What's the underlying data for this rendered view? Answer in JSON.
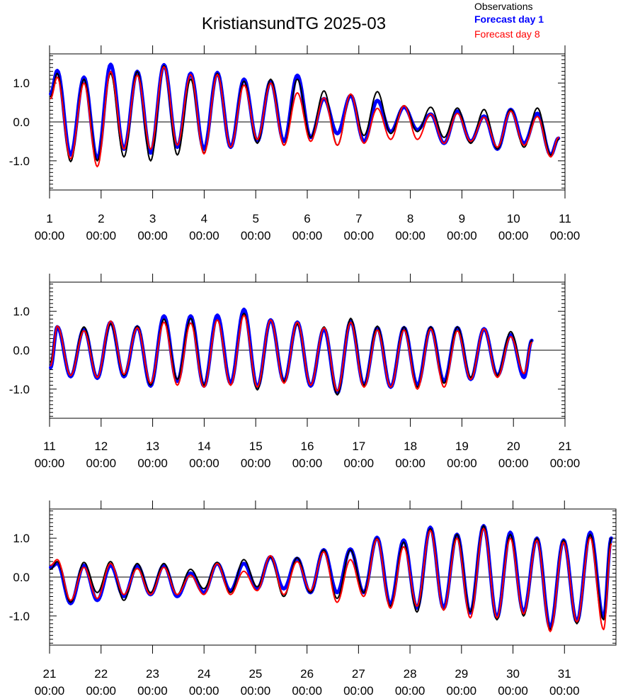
{
  "title": "KristiansundTG 2025-03",
  "legend": [
    {
      "label": "Observations",
      "color": "#000000",
      "bold": false
    },
    {
      "label": "Forecast day 1",
      "color": "#0000ff",
      "bold": true
    },
    {
      "label": "Forecast day 8",
      "color": "#ff0000",
      "bold": false
    }
  ],
  "chart_data": [
    {
      "type": "line",
      "x_range_days": [
        1,
        11
      ],
      "ylim": [
        -1.75,
        1.75
      ],
      "yticks": [
        -1.0,
        0.0,
        1.0
      ],
      "ytick_labels": [
        "-1.0",
        "0.0",
        "1.0"
      ],
      "xtick_labels": [
        [
          "1",
          "00:00"
        ],
        [
          "2",
          "00:00"
        ],
        [
          "3",
          "00:00"
        ],
        [
          "4",
          "00:00"
        ],
        [
          "5",
          "00:00"
        ],
        [
          "6",
          "00:00"
        ],
        [
          "7",
          "00:00"
        ],
        [
          "8",
          "00:00"
        ],
        [
          "9",
          "00:00"
        ],
        [
          "10",
          "00:00"
        ],
        [
          "11",
          "00:00"
        ]
      ],
      "series": [
        {
          "name": "Observations",
          "color": "#000000",
          "start_value": 0.65,
          "highs": [
            1.25,
            1.1,
            1.25,
            1.3,
            1.45,
            1.1,
            1.25,
            1.05,
            1.1,
            1.1,
            0.8,
            0.7,
            0.78,
            0.42,
            0.38,
            0.36,
            0.32,
            0.32,
            0.36
          ],
          "lows": [
            -1.02,
            -1.0,
            -0.9,
            -1.0,
            -0.85,
            -0.8,
            -0.65,
            -0.55,
            -0.6,
            -0.4,
            -0.6,
            -0.35,
            -0.3,
            -0.25,
            -0.4,
            -0.55,
            -0.7,
            -0.65,
            -0.85
          ],
          "end_value": -0.45
        },
        {
          "name": "Forecast day 1",
          "color": "#0000ff",
          "start_value": 0.72,
          "highs": [
            1.32,
            1.15,
            1.48,
            1.3,
            1.47,
            1.25,
            1.27,
            1.1,
            1.05,
            1.2,
            0.6,
            0.68,
            0.55,
            0.38,
            0.2,
            0.28,
            0.15,
            0.32,
            0.22
          ],
          "lows": [
            -0.85,
            -0.95,
            -0.7,
            -0.8,
            -0.65,
            -0.7,
            -0.65,
            -0.5,
            -0.5,
            -0.4,
            -0.3,
            -0.5,
            -0.25,
            -0.2,
            -0.55,
            -0.5,
            -0.7,
            -0.55,
            -0.85
          ],
          "end_value": -0.42
        },
        {
          "name": "Forecast day 8",
          "color": "#ff0000",
          "start_value": 0.6,
          "highs": [
            1.15,
            1.0,
            1.3,
            1.2,
            1.42,
            1.22,
            1.22,
            0.95,
            1.0,
            0.75,
            0.62,
            0.72,
            0.35,
            0.42,
            0.2,
            0.22,
            0.12,
            0.28,
            0.14
          ],
          "lows": [
            -0.95,
            -1.15,
            -0.7,
            -0.7,
            -0.6,
            -0.82,
            -0.65,
            -0.45,
            -0.6,
            -0.5,
            -0.6,
            -0.55,
            -0.45,
            -0.45,
            -0.55,
            -0.5,
            -0.65,
            -0.6,
            -0.9
          ],
          "end_value": -0.4
        }
      ]
    },
    {
      "type": "line",
      "x_range_days": [
        11,
        21
      ],
      "ylim": [
        -1.75,
        1.75
      ],
      "yticks": [
        -1.0,
        0.0,
        1.0
      ],
      "ytick_labels": [
        "-1.0",
        "0.0",
        "1.0"
      ],
      "xtick_labels": [
        [
          "11",
          "00:00"
        ],
        [
          "12",
          "00:00"
        ],
        [
          "13",
          "00:00"
        ],
        [
          "14",
          "00:00"
        ],
        [
          "15",
          "00:00"
        ],
        [
          "16",
          "00:00"
        ],
        [
          "17",
          "00:00"
        ],
        [
          "18",
          "00:00"
        ],
        [
          "19",
          "00:00"
        ],
        [
          "20",
          "00:00"
        ],
        [
          "21",
          "00:00"
        ]
      ],
      "series": [
        {
          "name": "Observations",
          "color": "#000000",
          "start_value": -0.3,
          "highs": [
            0.62,
            0.6,
            0.68,
            0.62,
            0.8,
            0.82,
            0.78,
            0.95,
            0.78,
            0.68,
            0.6,
            0.82,
            0.62,
            0.6,
            0.6,
            0.6,
            0.55,
            0.48
          ],
          "lows": [
            -0.65,
            -0.7,
            -0.65,
            -0.9,
            -0.75,
            -0.9,
            -0.9,
            -1.02,
            -0.8,
            -0.9,
            -1.15,
            -0.9,
            -0.95,
            -0.95,
            -0.85,
            -0.7,
            -0.65,
            -0.6
          ],
          "end_value": 0.25
        },
        {
          "name": "Forecast day 1",
          "color": "#0000ff",
          "start_value": -0.45,
          "highs": [
            0.6,
            0.55,
            0.72,
            0.6,
            0.88,
            0.88,
            0.9,
            1.05,
            0.78,
            0.72,
            0.55,
            0.75,
            0.58,
            0.58,
            0.58,
            0.58,
            0.55,
            0.4
          ],
          "lows": [
            -0.68,
            -0.72,
            -0.68,
            -0.92,
            -0.8,
            -0.92,
            -0.85,
            -0.95,
            -0.8,
            -0.92,
            -1.1,
            -0.9,
            -0.95,
            -0.9,
            -0.8,
            -0.75,
            -0.65,
            -0.7
          ],
          "end_value": 0.25
        },
        {
          "name": "Forecast day 8",
          "color": "#ff0000",
          "start_value": -0.4,
          "highs": [
            0.62,
            0.5,
            0.75,
            0.58,
            0.72,
            0.7,
            0.78,
            0.9,
            0.78,
            0.72,
            0.58,
            0.72,
            0.52,
            0.52,
            0.55,
            0.5,
            0.55,
            0.35
          ],
          "lows": [
            -0.65,
            -0.7,
            -0.62,
            -0.85,
            -0.9,
            -0.95,
            -0.9,
            -0.95,
            -0.85,
            -0.9,
            -1.05,
            -0.95,
            -0.95,
            -1.0,
            -0.95,
            -0.75,
            -0.7,
            -0.6
          ],
          "end_value": 0.2
        }
      ]
    },
    {
      "type": "line",
      "x_range_days": [
        21,
        32
      ],
      "ylim": [
        -1.75,
        1.75
      ],
      "yticks": [
        -1.0,
        0.0,
        1.0
      ],
      "ytick_labels": [
        "-1.0",
        "0.0",
        "1.0"
      ],
      "xtick_labels": [
        [
          "21",
          "00:00"
        ],
        [
          "22",
          "00:00"
        ],
        [
          "23",
          "00:00"
        ],
        [
          "24",
          "00:00"
        ],
        [
          "25",
          "00:00"
        ],
        [
          "26",
          "00:00"
        ],
        [
          "27",
          "00:00"
        ],
        [
          "28",
          "00:00"
        ],
        [
          "29",
          "00:00"
        ],
        [
          "30",
          "00:00"
        ],
        [
          "31",
          "00:00"
        ]
      ],
      "series": [
        {
          "name": "Observations",
          "color": "#000000",
          "start_value": 0.2,
          "highs": [
            0.4,
            0.38,
            0.4,
            0.35,
            0.35,
            0.2,
            0.38,
            0.45,
            0.52,
            0.5,
            0.7,
            0.7,
            1.0,
            0.9,
            1.25,
            1.1,
            1.32,
            1.1,
            1.0,
            0.95,
            1.1
          ],
          "lows": [
            -0.65,
            -0.4,
            -0.6,
            -0.4,
            -0.45,
            -0.3,
            -0.4,
            -0.25,
            -0.5,
            -0.4,
            -0.55,
            -0.4,
            -0.75,
            -0.9,
            -0.85,
            -0.9,
            -1.1,
            -1.0,
            -1.35,
            -1.2,
            -1.1
          ],
          "end_value": 1.0
        },
        {
          "name": "Forecast day 1",
          "color": "#0000ff",
          "start_value": 0.25,
          "highs": [
            0.35,
            0.3,
            0.3,
            0.3,
            0.3,
            0.1,
            0.35,
            0.35,
            0.52,
            0.48,
            0.7,
            0.72,
            1.02,
            0.95,
            1.28,
            1.1,
            1.32,
            1.15,
            1.0,
            0.95,
            1.15
          ],
          "lows": [
            -0.68,
            -0.6,
            -0.5,
            -0.45,
            -0.5,
            -0.4,
            -0.35,
            -0.3,
            -0.3,
            -0.4,
            -0.4,
            -0.4,
            -0.7,
            -0.8,
            -0.8,
            -0.92,
            -1.05,
            -0.9,
            -1.3,
            -1.15,
            -1.05
          ],
          "end_value": 1.0
        },
        {
          "name": "Forecast day 8",
          "color": "#ff0000",
          "start_value": 0.3,
          "highs": [
            0.45,
            0.25,
            0.35,
            0.22,
            0.25,
            0.05,
            0.35,
            0.15,
            0.55,
            0.4,
            0.65,
            0.45,
            0.98,
            0.78,
            1.2,
            1.0,
            1.25,
            1.0,
            0.95,
            0.9,
            1.02
          ],
          "lows": [
            -0.6,
            -0.55,
            -0.45,
            -0.45,
            -0.45,
            -0.45,
            -0.45,
            -0.35,
            -0.45,
            -0.35,
            -0.65,
            -0.5,
            -0.8,
            -0.75,
            -0.85,
            -1.05,
            -1.05,
            -0.95,
            -1.4,
            -1.15,
            -1.35
          ],
          "end_value": 0.85
        }
      ]
    }
  ]
}
